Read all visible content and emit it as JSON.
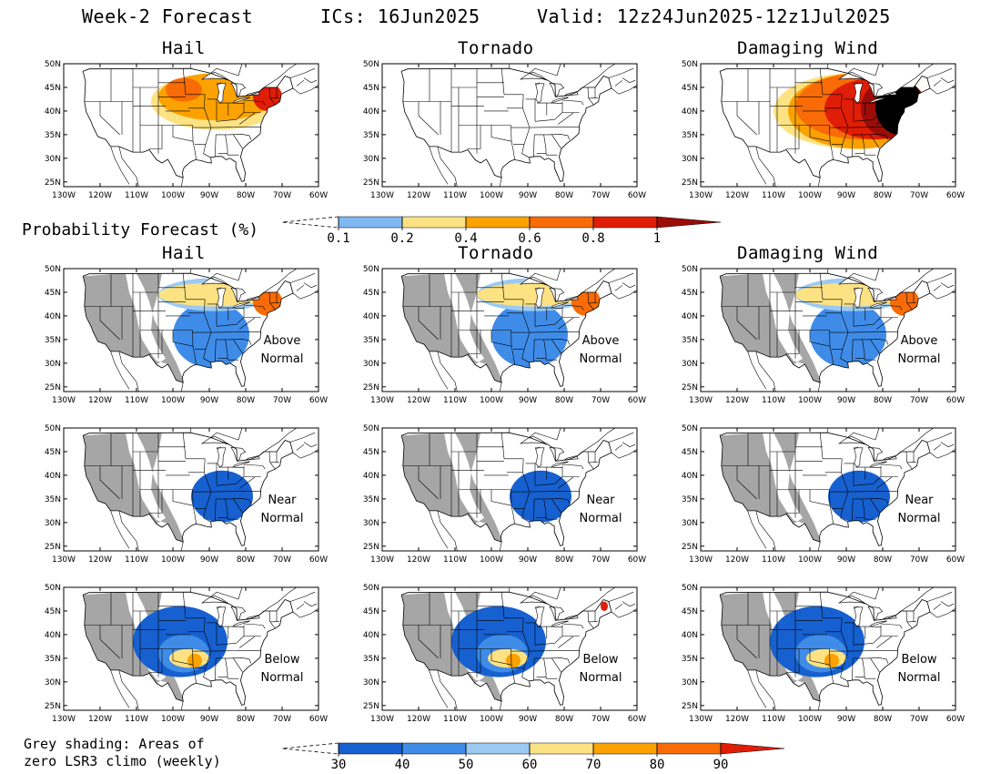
{
  "header": {
    "title": "Week-2 Forecast",
    "ics": "ICs: 16Jun2025",
    "valid": "Valid: 12z24Jun2025-12z1Jul2025"
  },
  "columns": [
    "Hail",
    "Tornado",
    "Damaging Wind"
  ],
  "probability_label": "Probability Forecast (%)",
  "grey_note": [
    "Grey shading: Areas of",
    "zero LSR3 climo (weekly)"
  ],
  "lon_ticks": [
    "130W",
    "120W",
    "110W",
    "100W",
    "90W",
    "80W",
    "70W",
    "60W"
  ],
  "lat_ticks": [
    "50N",
    "45N",
    "40N",
    "35N",
    "30N",
    "25N"
  ],
  "rows": [
    {
      "id": "probability",
      "label": "",
      "panels": [
        {
          "hazard": "Hail",
          "regions": [
            {
              "level": 1,
              "lon": [
                -106,
                -70
              ],
              "lat": [
                36,
                48
              ]
            },
            {
              "level": 2,
              "lon": [
                -104,
                -72
              ],
              "lat": [
                38,
                48
              ]
            },
            {
              "level": 3,
              "lon": [
                -102,
                -92
              ],
              "lat": [
                42,
                47
              ]
            },
            {
              "level": 4,
              "lon": [
                -78,
                -70
              ],
              "lat": [
                40,
                46
              ]
            }
          ]
        },
        {
          "hazard": "Tornado",
          "regions": []
        },
        {
          "hazard": "Damaging Wind",
          "regions": [
            {
              "level": 1,
              "lon": [
                -110,
                -66
              ],
              "lat": [
                32,
                48
              ]
            },
            {
              "level": 2,
              "lon": [
                -106,
                -67
              ],
              "lat": [
                32,
                48
              ]
            },
            {
              "level": 3,
              "lon": [
                -104,
                -68
              ],
              "lat": [
                34,
                48
              ]
            },
            {
              "level": 4,
              "lon": [
                -96,
                -68
              ],
              "lat": [
                34,
                47
              ]
            },
            {
              "level": 5,
              "lon": [
                -86,
                -68
              ],
              "lat": [
                34,
                47
              ]
            },
            {
              "level": 6,
              "lon": [
                -82,
                -69
              ],
              "lat": [
                35,
                47
              ]
            }
          ]
        }
      ]
    },
    {
      "id": "above",
      "label": [
        "Above",
        "Normal"
      ],
      "panels": [
        {
          "hazard": "Hail",
          "regions": [
            {
              "level": 1,
              "lon": [
                -100,
                -79
              ],
              "lat": [
                29,
                43
              ]
            },
            {
              "level": 2,
              "lon": [
                -104,
                -73
              ],
              "lat": [
                41,
                48
              ]
            },
            {
              "level": 3,
              "lon": [
                -104,
                -73
              ],
              "lat": [
                42,
                47
              ]
            },
            {
              "level": 5,
              "lon": [
                -78,
                -70
              ],
              "lat": [
                40,
                46
              ]
            }
          ]
        },
        {
          "hazard": "Tornado",
          "regions": [
            {
              "level": 1,
              "lon": [
                -100,
                -79
              ],
              "lat": [
                29,
                43
              ]
            },
            {
              "level": 2,
              "lon": [
                -104,
                -73
              ],
              "lat": [
                41,
                48
              ]
            },
            {
              "level": 3,
              "lon": [
                -104,
                -73
              ],
              "lat": [
                42,
                47
              ]
            },
            {
              "level": 5,
              "lon": [
                -78,
                -70
              ],
              "lat": [
                40,
                46
              ]
            }
          ]
        },
        {
          "hazard": "Damaging Wind",
          "regions": [
            {
              "level": 1,
              "lon": [
                -100,
                -79
              ],
              "lat": [
                29,
                43
              ]
            },
            {
              "level": 2,
              "lon": [
                -104,
                -73
              ],
              "lat": [
                41,
                48
              ]
            },
            {
              "level": 3,
              "lon": [
                -104,
                -73
              ],
              "lat": [
                42,
                47
              ]
            },
            {
              "level": 5,
              "lon": [
                -78,
                -70
              ],
              "lat": [
                40,
                46
              ]
            }
          ]
        }
      ]
    },
    {
      "id": "near",
      "label": [
        "Near",
        "Normal"
      ],
      "panels": [
        {
          "hazard": "Hail",
          "regions": [
            {
              "level": 0,
              "lon": [
                -95,
                -78
              ],
              "lat": [
                30,
                41
              ]
            }
          ]
        },
        {
          "hazard": "Tornado",
          "regions": [
            {
              "level": 0,
              "lon": [
                -95,
                -78
              ],
              "lat": [
                30,
                41
              ]
            }
          ]
        },
        {
          "hazard": "Damaging Wind",
          "regions": [
            {
              "level": 0,
              "lon": [
                -95,
                -78
              ],
              "lat": [
                30,
                41
              ]
            }
          ]
        }
      ]
    },
    {
      "id": "below",
      "label": [
        "Below",
        "Normal"
      ],
      "panels": [
        {
          "hazard": "Hail",
          "regions": [
            {
              "level": 0,
              "lon": [
                -111,
                -85
              ],
              "lat": [
                31,
                46
              ]
            },
            {
              "level": 1,
              "lon": [
                -104,
                -90
              ],
              "lat": [
                32,
                40
              ]
            },
            {
              "level": 3,
              "lon": [
                -101,
                -90
              ],
              "lat": [
                33,
                37
              ]
            },
            {
              "level": 4,
              "lon": [
                -96,
                -92
              ],
              "lat": [
                33,
                36
              ]
            }
          ]
        },
        {
          "hazard": "Tornado",
          "regions": [
            {
              "level": 0,
              "lon": [
                -111,
                -85
              ],
              "lat": [
                31,
                46
              ]
            },
            {
              "level": 1,
              "lon": [
                -104,
                -90
              ],
              "lat": [
                32,
                40
              ]
            },
            {
              "level": 3,
              "lon": [
                -101,
                -90
              ],
              "lat": [
                33,
                37
              ]
            },
            {
              "level": 4,
              "lon": [
                -96,
                -92
              ],
              "lat": [
                33,
                36
              ]
            },
            {
              "level": 6,
              "lon": [
                -70,
                -68
              ],
              "lat": [
                45,
                47
              ]
            }
          ]
        },
        {
          "hazard": "Damaging Wind",
          "regions": [
            {
              "level": 0,
              "lon": [
                -111,
                -85
              ],
              "lat": [
                31,
                46
              ]
            },
            {
              "level": 1,
              "lon": [
                -104,
                -90
              ],
              "lat": [
                32,
                40
              ]
            },
            {
              "level": 3,
              "lon": [
                -101,
                -90
              ],
              "lat": [
                33,
                37
              ]
            },
            {
              "level": 4,
              "lon": [
                -96,
                -92
              ],
              "lat": [
                33,
                36
              ]
            }
          ]
        }
      ]
    }
  ],
  "colorbar_probability": {
    "labels": [
      "0.1",
      "0.2",
      "0.4",
      "0.6",
      "0.8",
      "1"
    ],
    "colors": [
      "#80b8f4",
      "#fde283",
      "#fba200",
      "#f86b06",
      "#e01d06",
      "#9c0d08"
    ]
  },
  "colorbar_anomaly": {
    "labels": [
      "30",
      "40",
      "50",
      "60",
      "70",
      "80",
      "90"
    ],
    "colors": [
      "#1660d0",
      "#3f8ce8",
      "#9ccaf2",
      "#fde283",
      "#fba200",
      "#f86b06",
      "#e01d06"
    ]
  },
  "colors": {
    "grey": "#a6a6a6",
    "anomaly_levels": [
      "#1660d0",
      "#3f8ce8",
      "#9ccaf2",
      "#fde283",
      "#fba200",
      "#f86b06",
      "#e01d06"
    ],
    "prob_levels": [
      "#80b8f4",
      "#fde283",
      "#fba200",
      "#f86b06",
      "#e01d06",
      "#9c0d08"
    ]
  }
}
